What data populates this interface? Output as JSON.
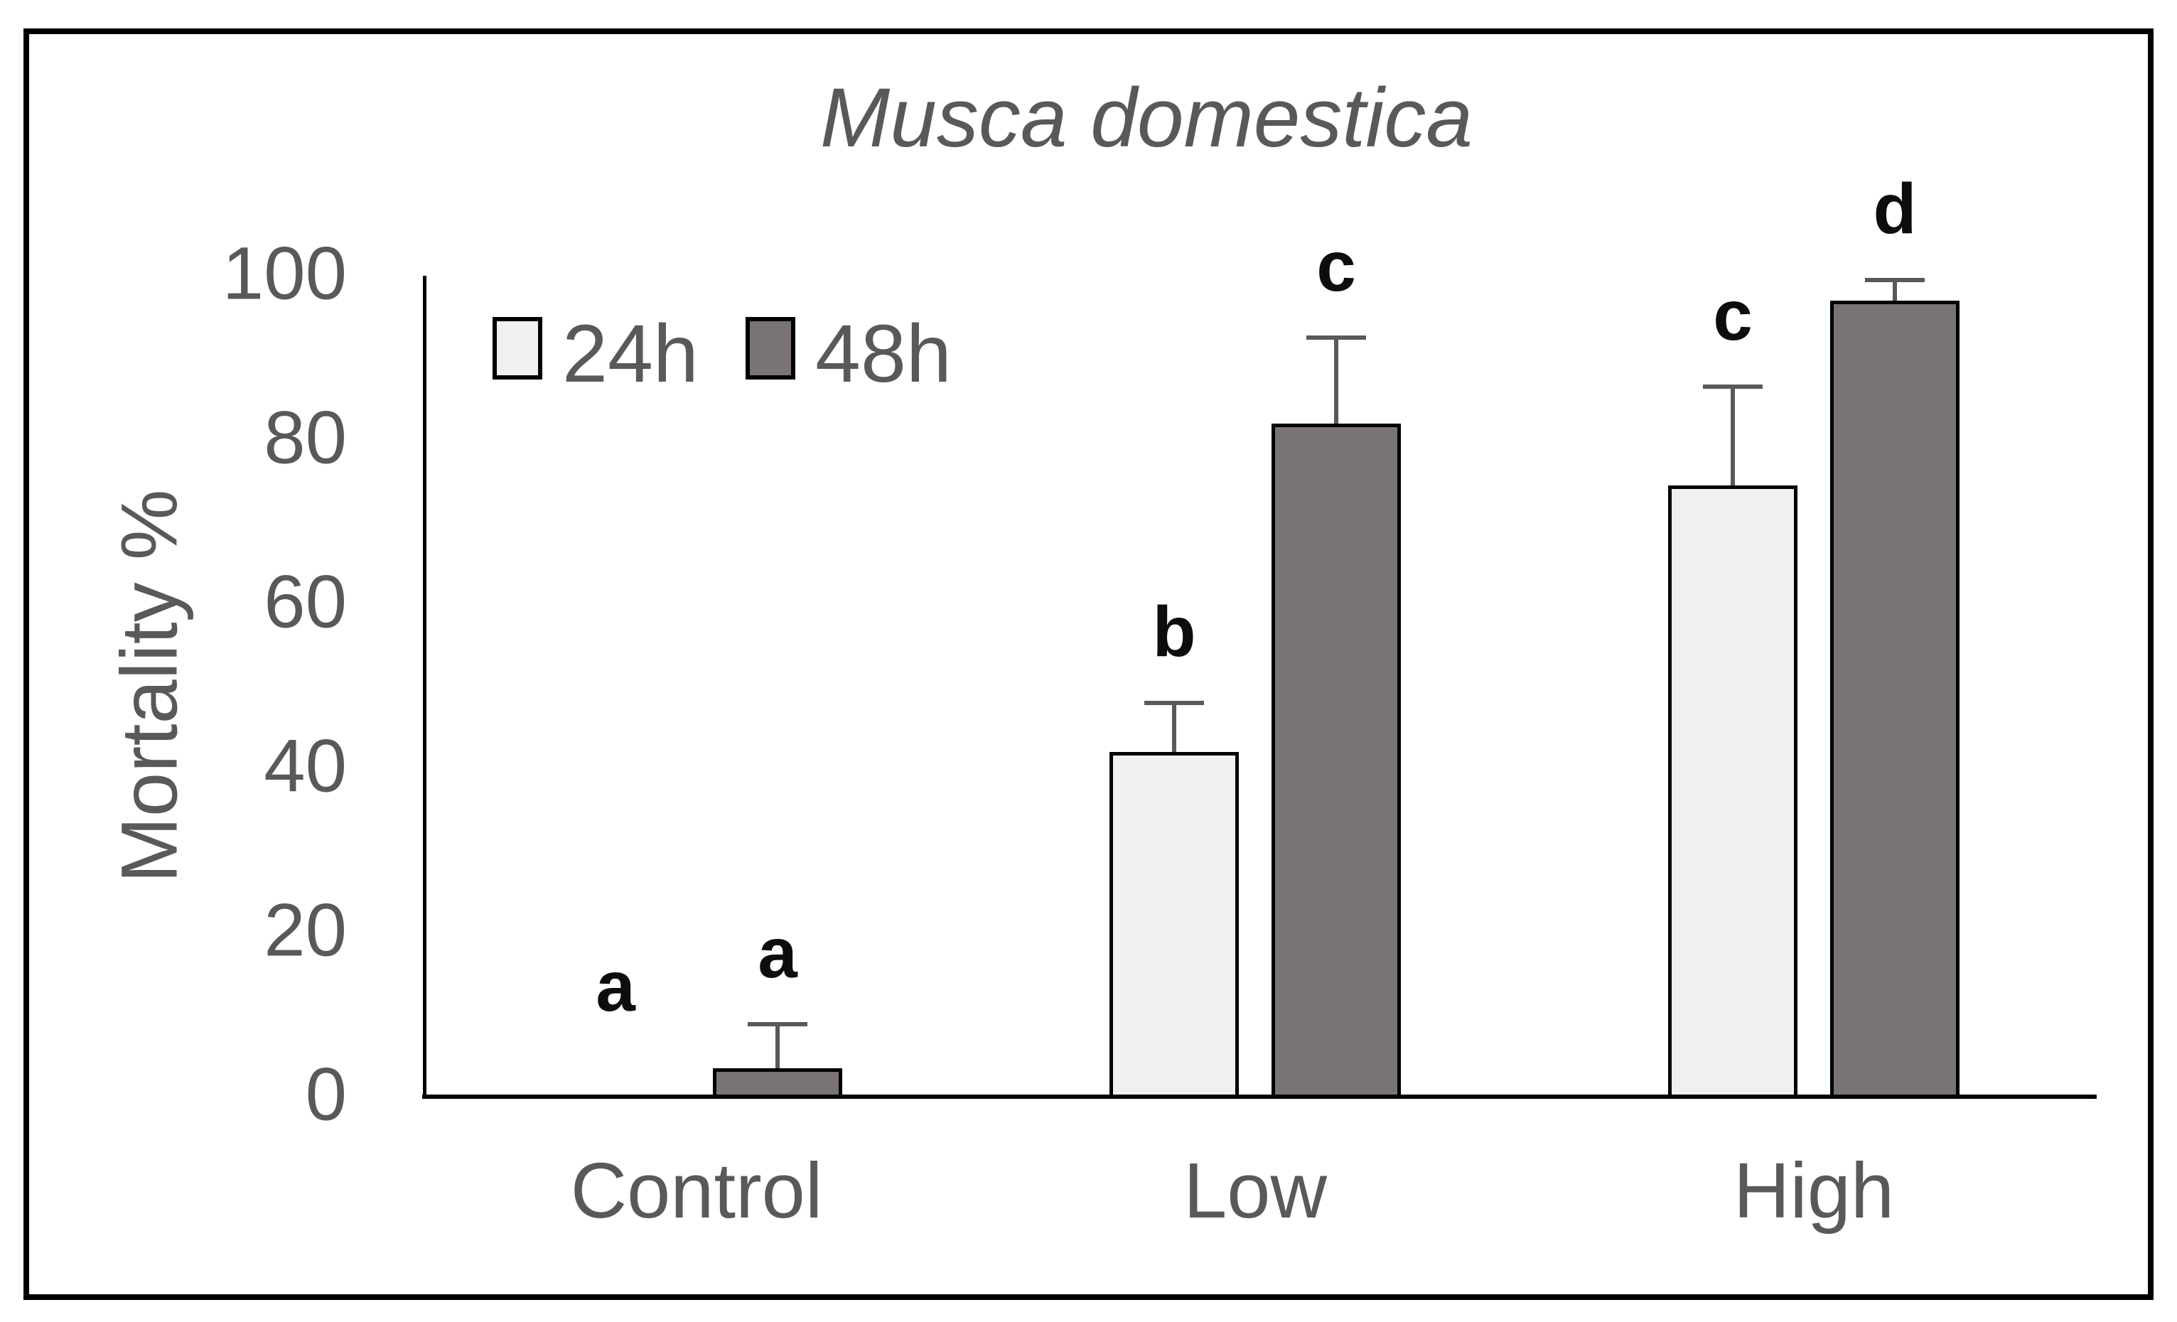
{
  "figure": {
    "title": "Musca domestica"
  },
  "legend": {
    "items": [
      {
        "label": "24h",
        "color": "#f1f0f0"
      },
      {
        "label": "48h",
        "color": "#7a7374"
      }
    ]
  },
  "y_axis": {
    "label": "Mortality %",
    "ticks": [
      "0",
      "20",
      "40",
      "60",
      "80",
      "100"
    ]
  },
  "x_axis": {
    "categories": [
      "Control",
      "Low",
      "High"
    ]
  },
  "chart_data": {
    "type": "bar",
    "title": "Musca domestica",
    "categories": [
      "Control",
      "Low",
      "High"
    ],
    "series": [
      {
        "name": "24h",
        "color": "#f1f0f0",
        "values": [
          0,
          42,
          74.5
        ],
        "errors_plus": [
          0,
          6,
          12
        ],
        "sig_letters": [
          "a",
          "b",
          "c"
        ]
      },
      {
        "name": "48h",
        "color": "#7a7374",
        "values": [
          3.5,
          82,
          97
        ],
        "errors_plus": [
          5.3,
          10.5,
          2.5
        ],
        "sig_letters": [
          "a",
          "c",
          "d"
        ]
      }
    ],
    "xlabel": "",
    "ylabel": "Mortality %",
    "ylim": [
      0,
      100
    ],
    "ytick_interval": 20,
    "grid": false,
    "legend_position": "top-left-inside",
    "error_bars": "upper-only"
  },
  "colors": {
    "text": "#595959",
    "letters": "#0d0d0d",
    "axis": "#000000",
    "error_bar": "#595959",
    "bar_border": "#000000",
    "frame": "#000000",
    "background": "#ffffff"
  }
}
